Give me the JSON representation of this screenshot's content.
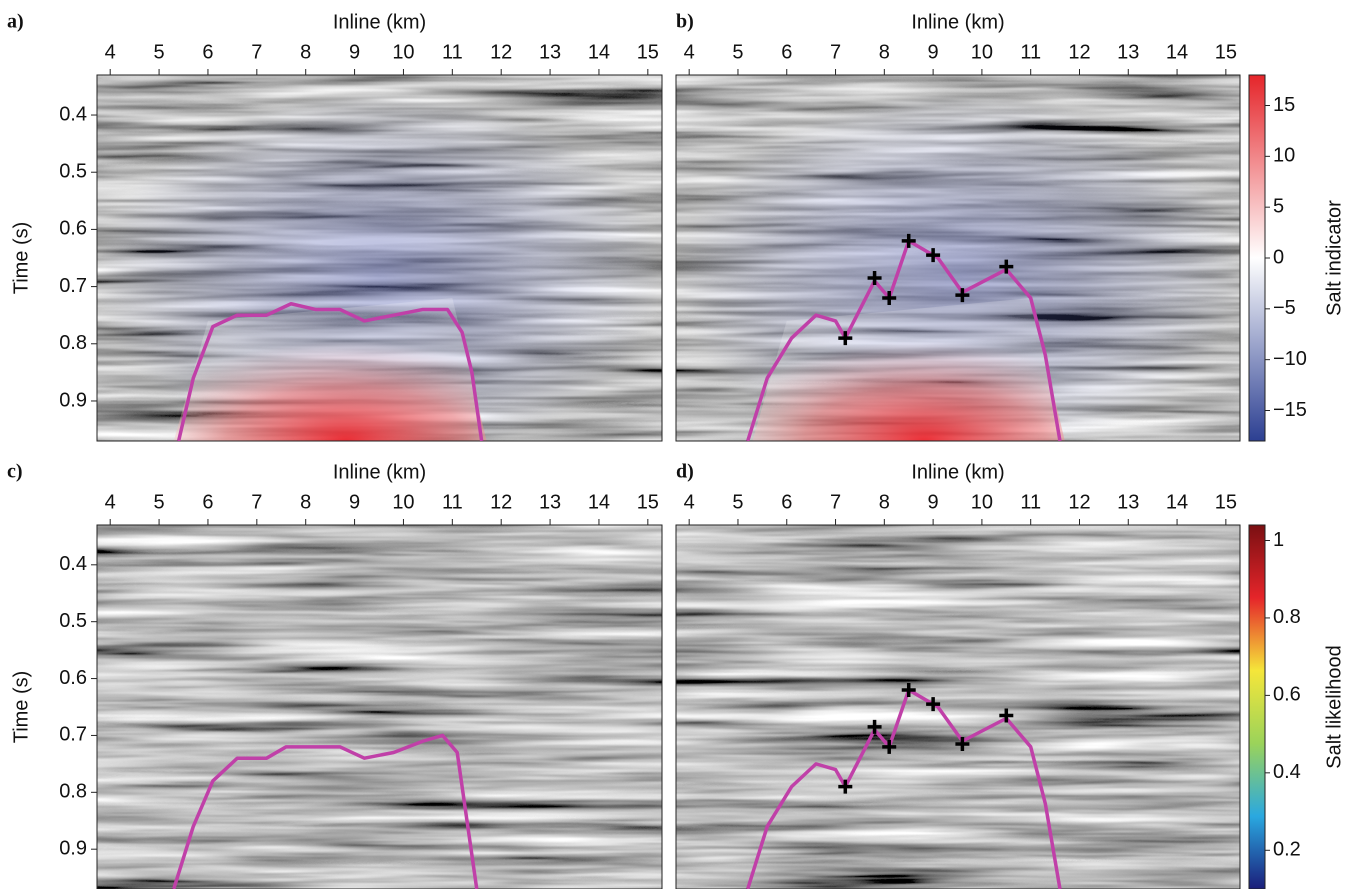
{
  "chart_data": [
    {
      "type": "line",
      "panel_label": "a)",
      "xlabel": "Inline (km)",
      "ylabel": "Time (s)",
      "xlim": [
        3.73,
        15.29
      ],
      "xticks": [
        4,
        5,
        6,
        7,
        8,
        9,
        10,
        11,
        12,
        13,
        14,
        15
      ],
      "ylim": [
        0.33,
        0.97
      ],
      "yticks": [
        0.4,
        0.5,
        0.6,
        0.7,
        0.8,
        0.9
      ],
      "y_inverted": true,
      "overlay": true,
      "series": [
        {
          "color": "#c040a8",
          "x": [
            5.4,
            5.7,
            6.1,
            6.6,
            7.2,
            7.7,
            8.2,
            8.7,
            9.2,
            9.8,
            10.4,
            10.9,
            11.2,
            11.4,
            11.6
          ],
          "values": [
            0.97,
            0.86,
            0.77,
            0.75,
            0.75,
            0.73,
            0.74,
            0.74,
            0.76,
            0.75,
            0.74,
            0.74,
            0.78,
            0.85,
            0.97
          ]
        }
      ]
    },
    {
      "type": "line",
      "panel_label": "b)",
      "xlabel": "Inline (km)",
      "xlim": [
        3.73,
        15.29
      ],
      "xticks": [
        4,
        5,
        6,
        7,
        8,
        9,
        10,
        11,
        12,
        13,
        14,
        15
      ],
      "ylim": [
        0.33,
        0.97
      ],
      "y_inverted": true,
      "overlay": true,
      "series": [
        {
          "color": "#c040a8",
          "x": [
            5.2,
            5.6,
            6.1,
            6.6,
            7.0,
            7.2,
            7.5,
            7.8,
            8.1,
            8.5,
            9.1,
            9.6,
            10.5,
            11.0,
            11.3,
            11.6
          ],
          "values": [
            0.97,
            0.86,
            0.79,
            0.75,
            0.76,
            0.79,
            0.74,
            0.69,
            0.72,
            0.62,
            0.65,
            0.71,
            0.67,
            0.72,
            0.82,
            0.97
          ]
        }
      ],
      "markers": {
        "color": "#000000",
        "x": [
          7.2,
          7.8,
          8.1,
          8.5,
          9.0,
          9.6,
          10.5
        ],
        "values": [
          0.79,
          0.685,
          0.72,
          0.62,
          0.645,
          0.715,
          0.665
        ]
      },
      "colorbar": {
        "label": "Salt indicator",
        "lim": [
          -18,
          18
        ],
        "colors": [
          "#2c3f92",
          "#ffffff",
          "#e5252a"
        ],
        "ticks": [
          {
            "value": -15,
            "label": "−15"
          },
          {
            "value": -10,
            "label": "−10"
          },
          {
            "value": -5,
            "label": "−5"
          },
          0,
          5,
          10,
          15
        ]
      }
    },
    {
      "type": "line",
      "panel_label": "c)",
      "xlabel": "Inline (km)",
      "ylabel": "Time (s)",
      "xlim": [
        3.73,
        15.29
      ],
      "xticks": [
        4,
        5,
        6,
        7,
        8,
        9,
        10,
        11,
        12,
        13,
        14,
        15
      ],
      "ylim": [
        0.33,
        0.97
      ],
      "yticks": [
        0.4,
        0.5,
        0.6,
        0.7,
        0.8,
        0.9
      ],
      "y_inverted": true,
      "overlay": false,
      "series": [
        {
          "color": "#c040a8",
          "x": [
            5.3,
            5.7,
            6.1,
            6.6,
            7.2,
            7.6,
            8.2,
            8.7,
            9.2,
            9.8,
            10.4,
            10.8,
            11.1,
            11.3,
            11.5
          ],
          "values": [
            0.97,
            0.86,
            0.78,
            0.74,
            0.74,
            0.72,
            0.72,
            0.72,
            0.74,
            0.73,
            0.71,
            0.7,
            0.73,
            0.85,
            0.97
          ]
        }
      ]
    },
    {
      "type": "line",
      "panel_label": "d)",
      "xlabel": "Inline (km)",
      "xlim": [
        3.73,
        15.29
      ],
      "xticks": [
        4,
        5,
        6,
        7,
        8,
        9,
        10,
        11,
        12,
        13,
        14,
        15
      ],
      "ylim": [
        0.33,
        0.97
      ],
      "y_inverted": true,
      "overlay": false,
      "series": [
        {
          "color": "#c040a8",
          "x": [
            5.2,
            5.6,
            6.1,
            6.6,
            7.0,
            7.2,
            7.5,
            7.8,
            8.1,
            8.5,
            9.1,
            9.6,
            10.5,
            11.0,
            11.3,
            11.6
          ],
          "values": [
            0.97,
            0.86,
            0.79,
            0.75,
            0.76,
            0.79,
            0.74,
            0.69,
            0.72,
            0.62,
            0.65,
            0.71,
            0.67,
            0.72,
            0.82,
            0.97
          ]
        }
      ],
      "markers": {
        "color": "#000000",
        "x": [
          7.2,
          7.8,
          8.1,
          8.5,
          9.0,
          9.6,
          10.5
        ],
        "values": [
          0.79,
          0.685,
          0.72,
          0.62,
          0.645,
          0.715,
          0.665
        ]
      },
      "colorbar": {
        "label": "Salt likelihood",
        "lim": [
          0.1,
          1.04
        ],
        "colors": [
          "#1b1d7a",
          "#2aa8e0",
          "#9bd35a",
          "#f5e63a",
          "#e5252a",
          "#7a0f12"
        ],
        "ticks": [
          0.2,
          0.4,
          0.6,
          0.8,
          1
        ]
      }
    }
  ]
}
